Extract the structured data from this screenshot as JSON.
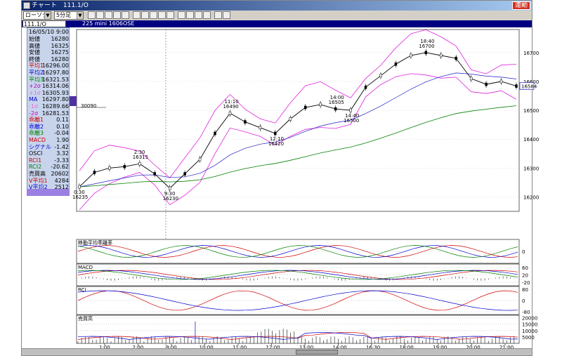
{
  "window": {
    "title": "チャート　111.1/O",
    "link_label": "連動"
  },
  "toolbar": {
    "chart_type": "ローソク",
    "interval": "5分足"
  },
  "infobar": {
    "symbol": "111.1/O",
    "contract": "225 mini 1606",
    "exchange": "OSE"
  },
  "panel": {
    "date": "16/05/10",
    "time": "9:00",
    "rows": [
      {
        "label": "始値",
        "value": "16280",
        "color": "#000000"
      },
      {
        "label": "高値",
        "value": "16325",
        "color": "#000000"
      },
      {
        "label": "安値",
        "value": "16275",
        "color": "#000000"
      },
      {
        "label": "終値",
        "value": "16280",
        "color": "#000000"
      },
      {
        "label": "平均1",
        "value": "16296.00",
        "color": "#d00000"
      },
      {
        "label": "平均2",
        "value": "16297.80",
        "color": "#0000d0"
      },
      {
        "label": "平均3",
        "value": "16321.53",
        "color": "#008000"
      },
      {
        "label": "+2σ",
        "value": "16314.06",
        "color": "#c000c0"
      },
      {
        "label": "+1σ",
        "value": "16305.93",
        "color": "#e070e0"
      },
      {
        "label": "MA",
        "value": "16297.80",
        "color": "#0000d0"
      },
      {
        "label": "-1σ",
        "value": "16289.66",
        "color": "#e070e0"
      },
      {
        "label": "-2σ",
        "value": "16281.53",
        "color": "#c000c0"
      },
      {
        "label": "乖離1",
        "value": "0.11",
        "color": "#d00000"
      },
      {
        "label": "乖離2",
        "value": "0.10",
        "color": "#0000d0"
      },
      {
        "label": "乖離3",
        "value": "-0.04",
        "color": "#008000"
      },
      {
        "label": "MACD",
        "value": "1.90",
        "color": "#d00000"
      },
      {
        "label": "シグナル",
        "value": "-1.42",
        "color": "#0000d0"
      },
      {
        "label": "OSCI",
        "value": "3.32",
        "color": "#000000"
      },
      {
        "label": "RCI1",
        "value": "-3.33",
        "color": "#d00000"
      },
      {
        "label": "RCI2",
        "value": "-20.62",
        "color": "#008000"
      },
      {
        "label": "売買高",
        "value": "20602",
        "color": "#000000"
      },
      {
        "label": "V平均1",
        "value": "4284",
        "color": "#d00000"
      },
      {
        "label": "V平均2",
        "value": "2512",
        "color": "#0000d0"
      }
    ]
  },
  "price_axis": [
    "16700",
    "16600",
    "16500",
    "16400",
    "16300",
    "16200"
  ],
  "current_price": "16584",
  "annotations": [
    {
      "time": "0:30",
      "price": "16235"
    },
    {
      "time": "2:30",
      "price": "16315"
    },
    {
      "time": "9:30",
      "price": "16230"
    },
    {
      "time": "11:10",
      "price": "16490"
    },
    {
      "time": "12:10",
      "price": "16420"
    },
    {
      "time": "14:00",
      "price": "16505"
    },
    {
      "time": "14:40",
      "price": "16500"
    },
    {
      "time": "18:40",
      "price": "16700"
    }
  ],
  "left_marker": "30090",
  "sub_panels": {
    "kairi": {
      "title": "移動平均乖離率",
      "ticks": [
        "0"
      ]
    },
    "macd": {
      "title": "MACD",
      "ticks": [
        "60",
        "20",
        "-20"
      ]
    },
    "rci": {
      "title": "RCI",
      "ticks": [
        "80",
        "0",
        "-80"
      ]
    },
    "volume": {
      "title": "売買高",
      "ticks": [
        "20000",
        "15000",
        "10000",
        "5000"
      ]
    }
  },
  "time_axis": [
    "1:00",
    "2:00",
    "9:00",
    "10:00",
    "11:00",
    "12:00",
    "13:00",
    "14:00",
    "16:30",
    "18:00",
    "19:00",
    "20:00",
    "21:00"
  ],
  "chart_data": {
    "type": "line",
    "y_unit": "price",
    "ylim": [
      16150,
      16780
    ],
    "x": [
      "0:30",
      "1:00",
      "1:30",
      "2:00",
      "2:30",
      "9:00",
      "9:30",
      "10:00",
      "10:30",
      "11:00",
      "11:10",
      "11:30",
      "12:00",
      "12:10",
      "12:30",
      "13:00",
      "13:30",
      "14:00",
      "14:40",
      "16:30",
      "17:00",
      "17:30",
      "18:00",
      "18:40",
      "19:00",
      "19:30",
      "20:00",
      "20:30",
      "21:00",
      "21:30"
    ],
    "series": [
      {
        "values": [
          16235,
          16285,
          16300,
          16305,
          16315,
          16280,
          16230,
          16280,
          16330,
          16420,
          16490,
          16460,
          16440,
          16420,
          16470,
          16510,
          16520,
          16505,
          16500,
          16580,
          16620,
          16660,
          16690,
          16700,
          16690,
          16680,
          16610,
          16590,
          16600,
          16584
        ]
      }
    ]
  }
}
